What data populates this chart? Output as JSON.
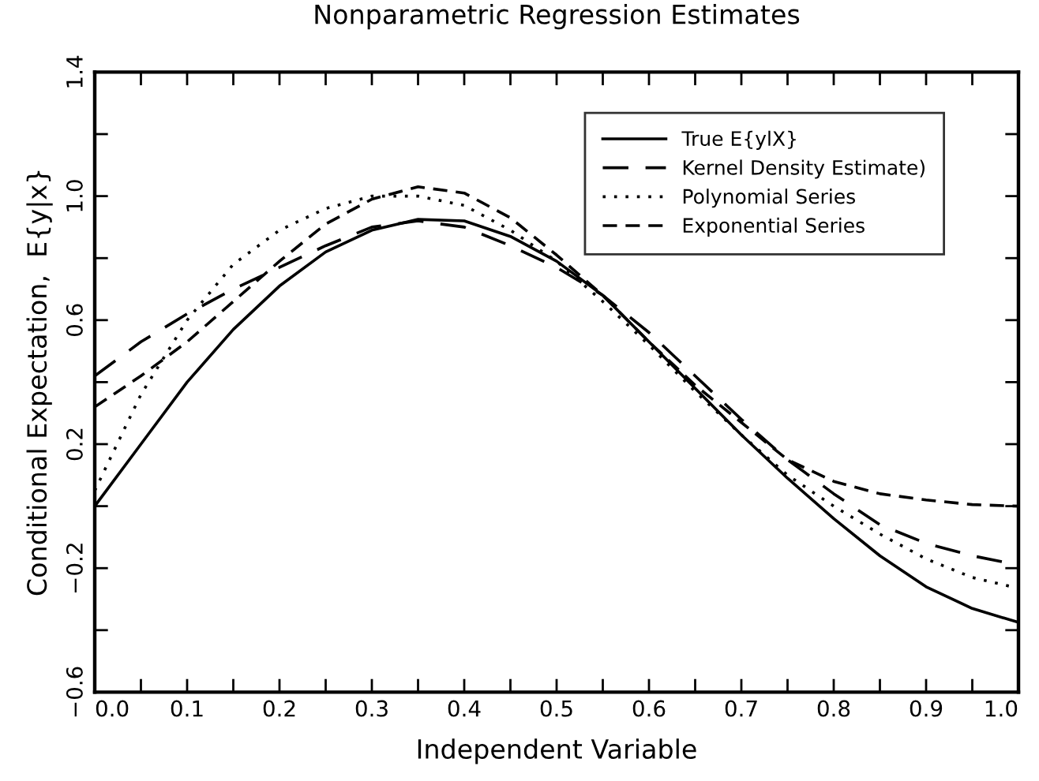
{
  "chart_data": {
    "type": "line",
    "title": "Nonparametric Regression Estimates",
    "xlabel": "Independent Variable",
    "ylabel": "Conditional Expectation,  E{y|x}",
    "xlim": [
      0,
      1
    ],
    "ylim": [
      -0.6,
      1.4
    ],
    "xticks": [
      {
        "value": 0,
        "label": "0.0"
      },
      {
        "value": 0.05,
        "label": null
      },
      0.1,
      {
        "value": 0.15,
        "label": null
      },
      0.2,
      {
        "value": 0.25,
        "label": null
      },
      0.3,
      {
        "value": 0.35,
        "label": null
      },
      0.4,
      {
        "value": 0.45,
        "label": null
      },
      0.5,
      {
        "value": 0.55,
        "label": null
      },
      0.6,
      {
        "value": 0.65,
        "label": null
      },
      0.7,
      {
        "value": 0.75,
        "label": null
      },
      0.8,
      {
        "value": 0.85,
        "label": null
      },
      0.9,
      {
        "value": 0.95,
        "label": null
      },
      {
        "value": 1,
        "label": "1.0"
      }
    ],
    "yticks": [
      {
        "value": -0.6,
        "label": "−0.6"
      },
      {
        "value": -0.4,
        "label": null
      },
      {
        "value": -0.2,
        "label": "−0.2"
      },
      {
        "value": 0,
        "label": null
      },
      0.2,
      {
        "value": 0.4,
        "label": null
      },
      0.6,
      {
        "value": 0.8,
        "label": null
      },
      {
        "value": 1,
        "label": "1.0"
      },
      {
        "value": 1.2,
        "label": null
      },
      1.4
    ],
    "grid": false,
    "legend": "top right",
    "marker": "none",
    "x": [
      0,
      0.05,
      0.1,
      0.15,
      0.2,
      0.25,
      0.3,
      0.35,
      0.4,
      0.45,
      0.5,
      0.55,
      0.6,
      0.65,
      0.7,
      0.75,
      0.8,
      0.85,
      0.9,
      0.95,
      1.0
    ],
    "series": [
      {
        "name": "True E{ylX}",
        "color": "#000000",
        "line_style": "solid",
        "values": [
          0.0,
          0.2,
          0.4,
          0.57,
          0.71,
          0.82,
          0.89,
          0.925,
          0.92,
          0.87,
          0.79,
          0.68,
          0.53,
          0.38,
          0.23,
          0.09,
          -0.04,
          -0.16,
          -0.26,
          -0.33,
          -0.375
        ]
      },
      {
        "name": "Kernel Density Estimate)",
        "color": "#000000",
        "line_style": "dashed",
        "values": [
          0.42,
          0.53,
          0.62,
          0.7,
          0.77,
          0.84,
          0.9,
          0.92,
          0.9,
          0.84,
          0.77,
          0.68,
          0.56,
          0.42,
          0.28,
          0.15,
          0.04,
          -0.06,
          -0.12,
          -0.16,
          -0.19
        ]
      },
      {
        "name": "Polynomial Series",
        "color": "#000000",
        "line_style": "dotted",
        "values": [
          0.05,
          0.36,
          0.6,
          0.78,
          0.89,
          0.96,
          1.0,
          1.0,
          0.97,
          0.89,
          0.79,
          0.66,
          0.52,
          0.37,
          0.23,
          0.1,
          0.0,
          -0.09,
          -0.17,
          -0.23,
          -0.265
        ]
      },
      {
        "name": "Exponential Series",
        "color": "#000000",
        "line_style": "dashed",
        "values": [
          0.32,
          0.42,
          0.53,
          0.66,
          0.79,
          0.91,
          0.99,
          1.03,
          1.01,
          0.93,
          0.81,
          0.68,
          0.53,
          0.39,
          0.27,
          0.15,
          0.08,
          0.04,
          0.02,
          0.005,
          0.0
        ]
      }
    ]
  }
}
